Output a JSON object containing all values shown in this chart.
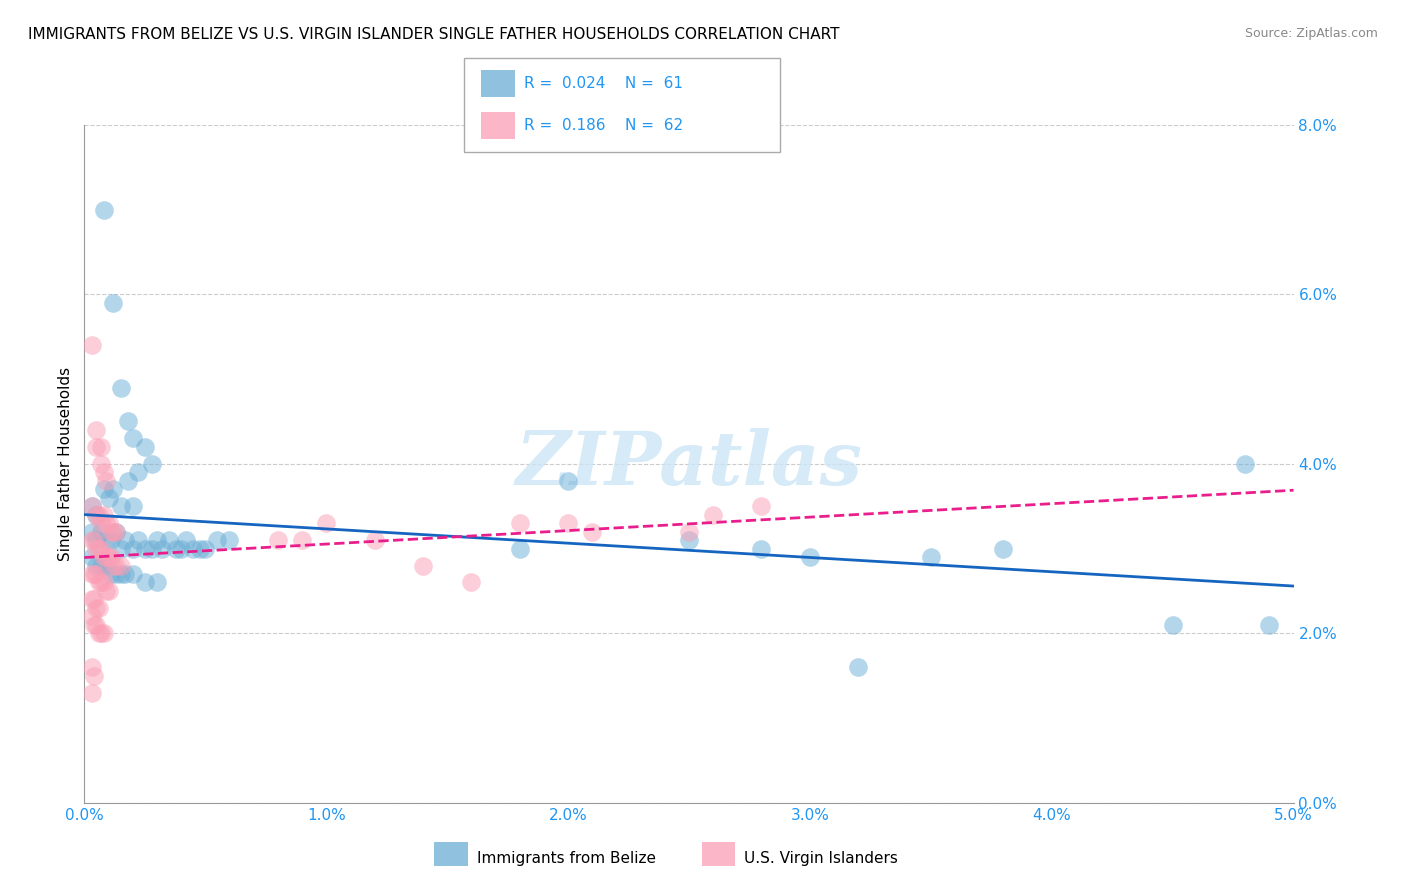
{
  "title": "IMMIGRANTS FROM BELIZE VS U.S. VIRGIN ISLANDER SINGLE FATHER HOUSEHOLDS CORRELATION CHART",
  "source": "Source: ZipAtlas.com",
  "ylabel_label": "Single Father Households",
  "xlim": [
    0.0,
    0.05
  ],
  "ylim": [
    0.0,
    0.08
  ],
  "legend_entries": [
    {
      "label": "Immigrants from Belize",
      "R": "0.024",
      "N": "61",
      "color": "#6baed6"
    },
    {
      "label": "U.S. Virgin Islanders",
      "R": "0.186",
      "N": "62",
      "color": "#fa9fb5"
    }
  ],
  "blue_scatter": [
    [
      0.0008,
      0.07
    ],
    [
      0.0012,
      0.059
    ],
    [
      0.0015,
      0.049
    ],
    [
      0.0018,
      0.045
    ],
    [
      0.002,
      0.043
    ],
    [
      0.0022,
      0.039
    ],
    [
      0.0025,
      0.042
    ],
    [
      0.0028,
      0.04
    ],
    [
      0.0003,
      0.035
    ],
    [
      0.0005,
      0.034
    ],
    [
      0.0008,
      0.037
    ],
    [
      0.001,
      0.036
    ],
    [
      0.0012,
      0.037
    ],
    [
      0.0015,
      0.035
    ],
    [
      0.0018,
      0.038
    ],
    [
      0.002,
      0.035
    ],
    [
      0.0003,
      0.032
    ],
    [
      0.0005,
      0.031
    ],
    [
      0.0007,
      0.032
    ],
    [
      0.0009,
      0.031
    ],
    [
      0.0011,
      0.031
    ],
    [
      0.0013,
      0.032
    ],
    [
      0.0015,
      0.03
    ],
    [
      0.0017,
      0.031
    ],
    [
      0.002,
      0.03
    ],
    [
      0.0022,
      0.031
    ],
    [
      0.0025,
      0.03
    ],
    [
      0.0028,
      0.03
    ],
    [
      0.003,
      0.031
    ],
    [
      0.0032,
      0.03
    ],
    [
      0.0035,
      0.031
    ],
    [
      0.0038,
      0.03
    ],
    [
      0.004,
      0.03
    ],
    [
      0.0042,
      0.031
    ],
    [
      0.0045,
      0.03
    ],
    [
      0.0048,
      0.03
    ],
    [
      0.005,
      0.03
    ],
    [
      0.0055,
      0.031
    ],
    [
      0.0003,
      0.029
    ],
    [
      0.0005,
      0.028
    ],
    [
      0.0007,
      0.028
    ],
    [
      0.0009,
      0.028
    ],
    [
      0.0011,
      0.027
    ],
    [
      0.0013,
      0.027
    ],
    [
      0.0015,
      0.027
    ],
    [
      0.0017,
      0.027
    ],
    [
      0.002,
      0.027
    ],
    [
      0.0025,
      0.026
    ],
    [
      0.003,
      0.026
    ],
    [
      0.006,
      0.031
    ],
    [
      0.018,
      0.03
    ],
    [
      0.02,
      0.038
    ],
    [
      0.025,
      0.031
    ],
    [
      0.028,
      0.03
    ],
    [
      0.03,
      0.029
    ],
    [
      0.032,
      0.016
    ],
    [
      0.035,
      0.029
    ],
    [
      0.038,
      0.03
    ],
    [
      0.045,
      0.021
    ],
    [
      0.048,
      0.04
    ],
    [
      0.049,
      0.021
    ]
  ],
  "pink_scatter": [
    [
      0.0003,
      0.054
    ],
    [
      0.0005,
      0.044
    ],
    [
      0.0005,
      0.042
    ],
    [
      0.0007,
      0.042
    ],
    [
      0.0007,
      0.04
    ],
    [
      0.0008,
      0.039
    ],
    [
      0.0009,
      0.038
    ],
    [
      0.0003,
      0.035
    ],
    [
      0.0005,
      0.034
    ],
    [
      0.0006,
      0.034
    ],
    [
      0.0007,
      0.033
    ],
    [
      0.0008,
      0.034
    ],
    [
      0.0009,
      0.033
    ],
    [
      0.001,
      0.033
    ],
    [
      0.0011,
      0.032
    ],
    [
      0.0012,
      0.032
    ],
    [
      0.0013,
      0.032
    ],
    [
      0.0003,
      0.031
    ],
    [
      0.0004,
      0.031
    ],
    [
      0.0005,
      0.03
    ],
    [
      0.0006,
      0.03
    ],
    [
      0.0007,
      0.03
    ],
    [
      0.0008,
      0.029
    ],
    [
      0.0009,
      0.029
    ],
    [
      0.001,
      0.029
    ],
    [
      0.0011,
      0.029
    ],
    [
      0.0012,
      0.028
    ],
    [
      0.0013,
      0.028
    ],
    [
      0.0015,
      0.028
    ],
    [
      0.0003,
      0.027
    ],
    [
      0.0004,
      0.027
    ],
    [
      0.0005,
      0.027
    ],
    [
      0.0006,
      0.026
    ],
    [
      0.0007,
      0.026
    ],
    [
      0.0008,
      0.026
    ],
    [
      0.0009,
      0.025
    ],
    [
      0.001,
      0.025
    ],
    [
      0.0003,
      0.024
    ],
    [
      0.0004,
      0.024
    ],
    [
      0.0005,
      0.023
    ],
    [
      0.0006,
      0.023
    ],
    [
      0.0003,
      0.022
    ],
    [
      0.0004,
      0.021
    ],
    [
      0.0005,
      0.021
    ],
    [
      0.0006,
      0.02
    ],
    [
      0.0007,
      0.02
    ],
    [
      0.0008,
      0.02
    ],
    [
      0.0003,
      0.016
    ],
    [
      0.0004,
      0.015
    ],
    [
      0.0003,
      0.013
    ],
    [
      0.008,
      0.031
    ],
    [
      0.009,
      0.031
    ],
    [
      0.01,
      0.033
    ],
    [
      0.012,
      0.031
    ],
    [
      0.014,
      0.028
    ],
    [
      0.016,
      0.026
    ],
    [
      0.018,
      0.033
    ],
    [
      0.02,
      0.033
    ],
    [
      0.021,
      0.032
    ],
    [
      0.025,
      0.032
    ],
    [
      0.026,
      0.034
    ],
    [
      0.028,
      0.035
    ]
  ],
  "blue_line_color": "#1565C0",
  "pink_line_color": "#e91e8c",
  "grid_color": "#cccccc",
  "background_color": "#ffffff",
  "watermark": "ZIPatlas",
  "title_fontsize": 11,
  "tick_color": "#2196F3"
}
